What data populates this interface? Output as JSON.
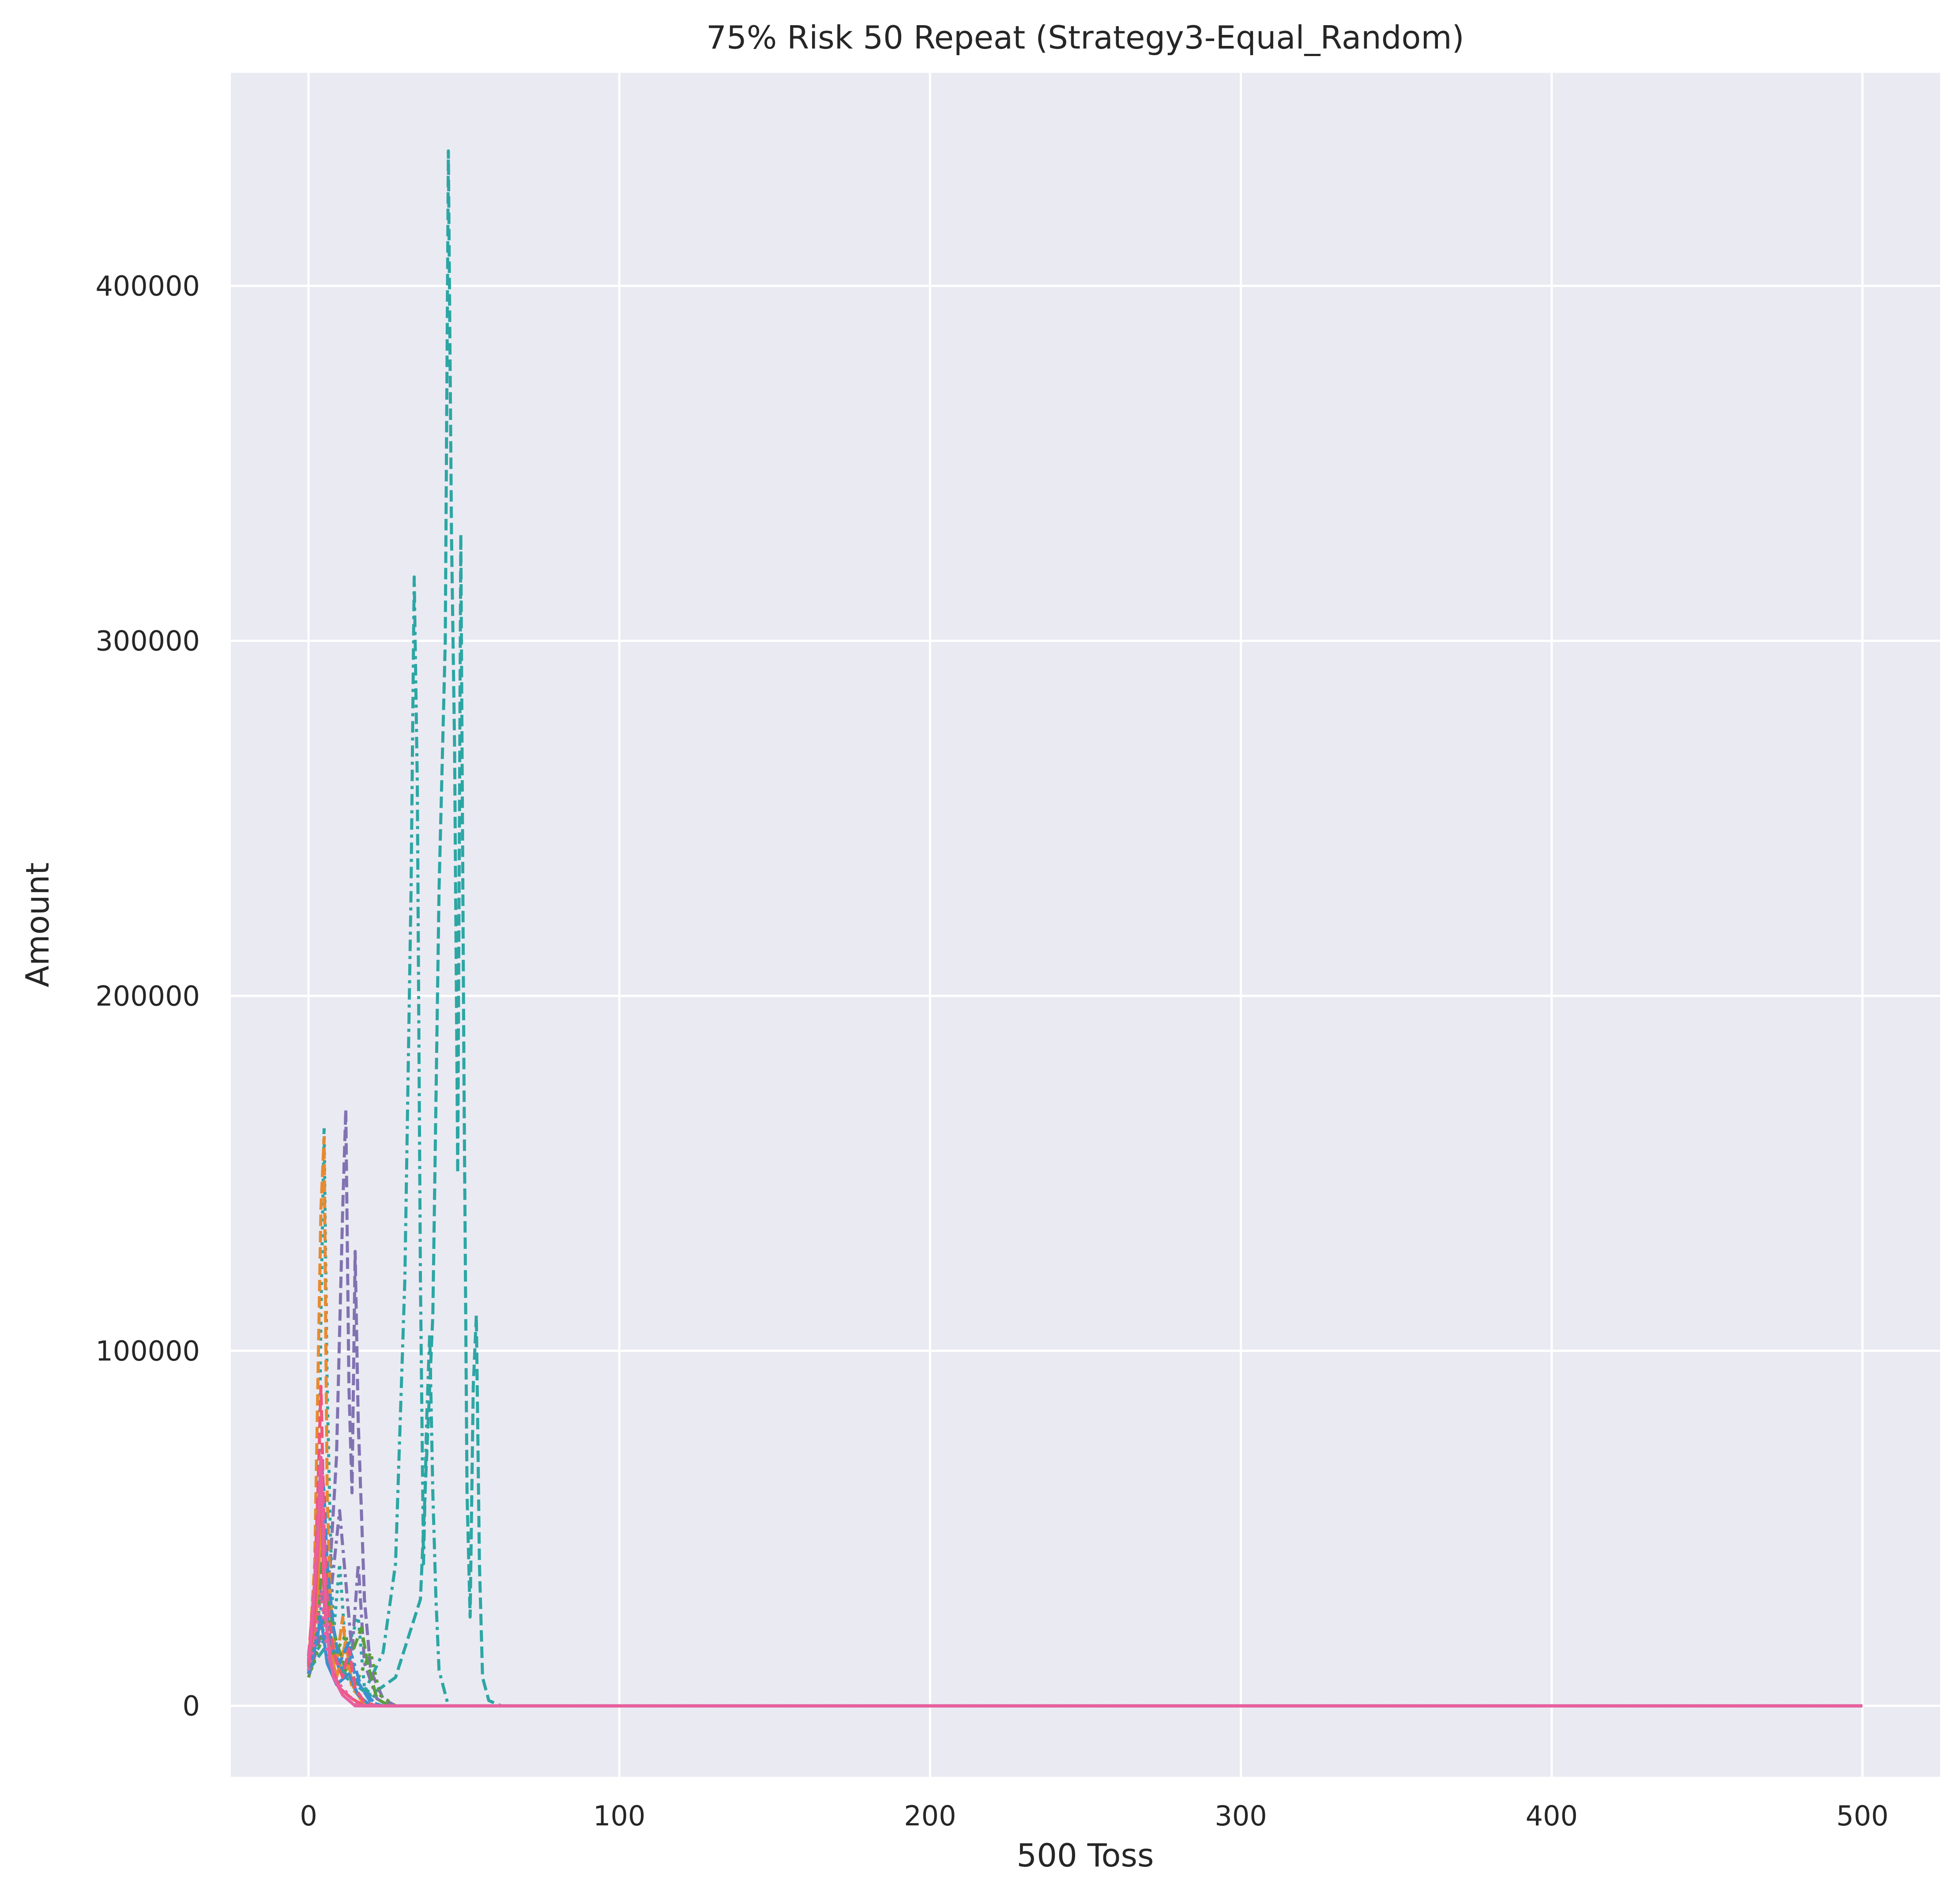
{
  "chart_data": {
    "type": "line",
    "title": "75% Risk 50 Repeat (Strategy3-Equal_Random)",
    "xlabel": "500 Toss",
    "ylabel": "Amount",
    "xlim": [
      -25,
      525
    ],
    "ylim": [
      -20000,
      460000
    ],
    "xticks": [
      0,
      100,
      200,
      300,
      400,
      500
    ],
    "yticks": [
      0,
      100000,
      200000,
      300000,
      400000
    ],
    "grid": true,
    "background": "#eaeaf2",
    "series": [
      {
        "color": "#2ca6a4",
        "dash": "dashed",
        "points": [
          [
            0,
            10000
          ],
          [
            5,
            16000
          ],
          [
            12,
            9000
          ],
          [
            20,
            3000
          ],
          [
            28,
            8000
          ],
          [
            36,
            30000
          ],
          [
            40,
            110000
          ],
          [
            42,
            230000
          ],
          [
            44,
            300000
          ],
          [
            45,
            438000
          ],
          [
            46,
            330000
          ],
          [
            47,
            270000
          ],
          [
            48,
            150000
          ],
          [
            49,
            330000
          ],
          [
            50,
            180000
          ],
          [
            51,
            60000
          ],
          [
            52,
            25000
          ],
          [
            53,
            90000
          ],
          [
            54,
            110000
          ],
          [
            55,
            40000
          ],
          [
            56,
            8000
          ],
          [
            58,
            1500
          ],
          [
            62,
            0
          ],
          [
            500,
            0
          ]
        ]
      },
      {
        "color": "#2ca6a4",
        "dash": "dashdot",
        "points": [
          [
            0,
            12000
          ],
          [
            6,
            20000
          ],
          [
            12,
            8000
          ],
          [
            18,
            4000
          ],
          [
            24,
            15000
          ],
          [
            28,
            40000
          ],
          [
            31,
            120000
          ],
          [
            33,
            230000
          ],
          [
            34,
            318000
          ],
          [
            35,
            260000
          ],
          [
            36,
            120000
          ],
          [
            37,
            40000
          ],
          [
            38,
            80000
          ],
          [
            39,
            105000
          ],
          [
            40,
            60000
          ],
          [
            41,
            30000
          ],
          [
            42,
            10000
          ],
          [
            45,
            0
          ],
          [
            500,
            0
          ]
        ]
      },
      {
        "color": "#2ca6a4",
        "dash": "dotted",
        "points": [
          [
            0,
            9000
          ],
          [
            3,
            35000
          ],
          [
            4,
            110000
          ],
          [
            5,
            163000
          ],
          [
            6,
            90000
          ],
          [
            7,
            50000
          ],
          [
            8,
            20000
          ],
          [
            10,
            40000
          ],
          [
            12,
            15000
          ],
          [
            16,
            25000
          ],
          [
            18,
            5000
          ],
          [
            22,
            2000
          ],
          [
            26,
            0
          ],
          [
            500,
            0
          ]
        ]
      },
      {
        "color": "#8172b2",
        "dash": "dashed",
        "points": [
          [
            0,
            8000
          ],
          [
            4,
            20000
          ],
          [
            7,
            40000
          ],
          [
            9,
            70000
          ],
          [
            11,
            140000
          ],
          [
            12,
            168000
          ],
          [
            13,
            90000
          ],
          [
            14,
            60000
          ],
          [
            15,
            128000
          ],
          [
            16,
            80000
          ],
          [
            17,
            55000
          ],
          [
            18,
            30000
          ],
          [
            20,
            10000
          ],
          [
            24,
            2000
          ],
          [
            28,
            0
          ],
          [
            500,
            0
          ]
        ]
      },
      {
        "color": "#8172b2",
        "dash": "dashdot",
        "points": [
          [
            0,
            10000
          ],
          [
            3,
            25000
          ],
          [
            5,
            45000
          ],
          [
            7,
            30000
          ],
          [
            10,
            55000
          ],
          [
            12,
            35000
          ],
          [
            14,
            15000
          ],
          [
            16,
            40000
          ],
          [
            18,
            12000
          ],
          [
            22,
            2000
          ],
          [
            26,
            0
          ],
          [
            500,
            0
          ]
        ]
      },
      {
        "color": "#e78a2f",
        "dash": "dashed",
        "points": [
          [
            0,
            11000
          ],
          [
            2,
            40000
          ],
          [
            3,
            90000
          ],
          [
            4,
            140000
          ],
          [
            5,
            160000
          ],
          [
            6,
            60000
          ],
          [
            7,
            30000
          ],
          [
            9,
            12000
          ],
          [
            11,
            25000
          ],
          [
            12,
            15000
          ],
          [
            14,
            5000
          ],
          [
            18,
            1000
          ],
          [
            22,
            0
          ],
          [
            500,
            0
          ]
        ]
      },
      {
        "color": "#e78a2f",
        "dash": "solid",
        "points": [
          [
            0,
            9000
          ],
          [
            3,
            30000
          ],
          [
            4,
            55000
          ],
          [
            6,
            20000
          ],
          [
            9,
            8000
          ],
          [
            12,
            18000
          ],
          [
            14,
            6000
          ],
          [
            18,
            0
          ],
          [
            500,
            0
          ]
        ]
      },
      {
        "color": "#5a9e3c",
        "dash": "dashed",
        "points": [
          [
            0,
            10000
          ],
          [
            3,
            22000
          ],
          [
            5,
            50000
          ],
          [
            6,
            30000
          ],
          [
            9,
            18000
          ],
          [
            12,
            10000
          ],
          [
            17,
            22000
          ],
          [
            19,
            12000
          ],
          [
            22,
            2000
          ],
          [
            26,
            0
          ],
          [
            500,
            0
          ]
        ]
      },
      {
        "color": "#5a9e3c",
        "dash": "dotted",
        "points": [
          [
            0,
            8000
          ],
          [
            4,
            18000
          ],
          [
            6,
            28000
          ],
          [
            8,
            14000
          ],
          [
            12,
            20000
          ],
          [
            15,
            6000
          ],
          [
            20,
            15000
          ],
          [
            23,
            3000
          ],
          [
            28,
            0
          ],
          [
            500,
            0
          ]
        ]
      },
      {
        "color": "#3b8fd1",
        "dash": "dashed",
        "points": [
          [
            0,
            12000
          ],
          [
            2,
            30000
          ],
          [
            4,
            70000
          ],
          [
            5,
            60000
          ],
          [
            6,
            40000
          ],
          [
            8,
            22000
          ],
          [
            10,
            12000
          ],
          [
            13,
            18000
          ],
          [
            15,
            8000
          ],
          [
            20,
            1000
          ],
          [
            24,
            0
          ],
          [
            500,
            0
          ]
        ]
      },
      {
        "color": "#3b8fd1",
        "dash": "dashdot",
        "points": [
          [
            0,
            9000
          ],
          [
            3,
            20000
          ],
          [
            5,
            35000
          ],
          [
            7,
            18000
          ],
          [
            10,
            10000
          ],
          [
            14,
            14000
          ],
          [
            17,
            5000
          ],
          [
            22,
            0
          ],
          [
            500,
            0
          ]
        ]
      },
      {
        "color": "#3b8fd1",
        "dash": "solid",
        "points": [
          [
            0,
            10000
          ],
          [
            2,
            16000
          ],
          [
            4,
            25000
          ],
          [
            6,
            12000
          ],
          [
            9,
            6000
          ],
          [
            13,
            9000
          ],
          [
            16,
            3000
          ],
          [
            20,
            0
          ],
          [
            500,
            0
          ]
        ]
      },
      {
        "color": "#f0567a",
        "dash": "dashed",
        "points": [
          [
            0,
            14000
          ],
          [
            2,
            35000
          ],
          [
            3,
            60000
          ],
          [
            4,
            90000
          ],
          [
            5,
            50000
          ],
          [
            6,
            30000
          ],
          [
            8,
            15000
          ],
          [
            11,
            8000
          ],
          [
            13,
            16000
          ],
          [
            15,
            5000
          ],
          [
            18,
            1000
          ],
          [
            22,
            0
          ],
          [
            500,
            0
          ]
        ]
      },
      {
        "color": "#f0567a",
        "dash": "solid",
        "points": [
          [
            0,
            11000
          ],
          [
            2,
            25000
          ],
          [
            3,
            45000
          ],
          [
            4,
            65000
          ],
          [
            5,
            30000
          ],
          [
            7,
            12000
          ],
          [
            10,
            5000
          ],
          [
            14,
            2000
          ],
          [
            18,
            0
          ],
          [
            500,
            0
          ]
        ]
      },
      {
        "color": "#e8609f",
        "dash": "solid",
        "points": [
          [
            0,
            13000
          ],
          [
            1,
            22000
          ],
          [
            2,
            35000
          ],
          [
            3,
            48000
          ],
          [
            4,
            70000
          ],
          [
            5,
            40000
          ],
          [
            6,
            20000
          ],
          [
            8,
            8000
          ],
          [
            11,
            3000
          ],
          [
            15,
            0
          ],
          [
            500,
            0
          ]
        ]
      },
      {
        "color": "#e8609f",
        "dash": "dotted",
        "points": [
          [
            0,
            10000
          ],
          [
            2,
            18000
          ],
          [
            4,
            32000
          ],
          [
            6,
            15000
          ],
          [
            9,
            7000
          ],
          [
            12,
            4000
          ],
          [
            16,
            0
          ],
          [
            500,
            0
          ]
        ]
      }
    ]
  }
}
